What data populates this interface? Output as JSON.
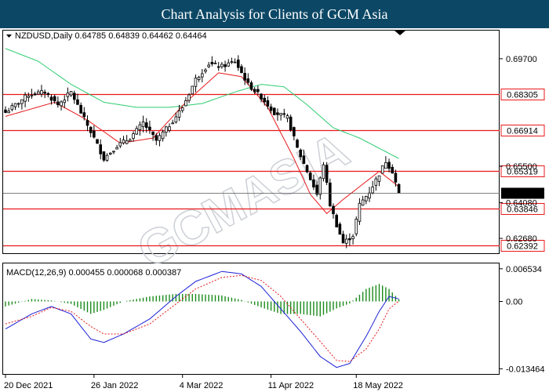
{
  "banner": {
    "title": "Chart Analysis for Clients of GCM Asia"
  },
  "price_header": "NZDUSD,Daily  0.64785 0.64839 0.64462 0.64464",
  "macd_header": "MACD(12,26,9) 0.000455 0.000068 0.000387",
  "watermark": "GCMASIA",
  "colors": {
    "banner_bg": "#0c4866",
    "level_line": "#e8191b",
    "ma_fast": "#e8191b",
    "ma_slow": "#2ecc71",
    "macd_line": "#1b1fd6",
    "signal_line": "#e8191b",
    "histogram": "#1a8a1a",
    "candle": "#000000",
    "price_tag_bg": "#000000"
  },
  "chart_data": [
    {
      "type": "candlestick",
      "symbol": "NZDUSD",
      "timeframe": "Daily",
      "last_ohlc": {
        "open": 0.64785,
        "high": 0.64839,
        "low": 0.64462,
        "close": 0.64464
      },
      "ylim": [
        0.621,
        0.708
      ],
      "y_ticks": [
        0.697,
        0.655,
        0.6408,
        0.6268
      ],
      "x_ticks": [
        "20 Dec 2021",
        "26 Jan 2022",
        "4 Mar 2022",
        "11 Apr 2022",
        "18 May 2022"
      ],
      "x_tick_index": [
        0,
        27,
        54,
        81,
        107
      ],
      "levels": [
        0.68305,
        0.66914,
        0.65319,
        0.63846,
        0.62392
      ],
      "current_price": 0.64464,
      "grid": false,
      "series": [
        {
          "name": "ma_fast",
          "anchors": [
            [
              0,
              0.6745
            ],
            [
              15,
              0.68
            ],
            [
              25,
              0.673
            ],
            [
              35,
              0.664
            ],
            [
              45,
              0.666
            ],
            [
              55,
              0.68
            ],
            [
              65,
              0.6915
            ],
            [
              72,
              0.69
            ],
            [
              80,
              0.678
            ],
            [
              88,
              0.658
            ],
            [
              93,
              0.644
            ],
            [
              98,
              0.6365
            ],
            [
              103,
              0.642
            ],
            [
              108,
              0.647
            ],
            [
              114,
              0.653
            ],
            [
              120,
              0.647
            ]
          ]
        },
        {
          "name": "ma_slow",
          "anchors": [
            [
              0,
              0.701
            ],
            [
              10,
              0.696
            ],
            [
              20,
              0.687
            ],
            [
              30,
              0.68
            ],
            [
              40,
              0.678
            ],
            [
              50,
              0.678
            ],
            [
              60,
              0.6795
            ],
            [
              70,
              0.684
            ],
            [
              78,
              0.687
            ],
            [
              85,
              0.686
            ],
            [
              92,
              0.679
            ],
            [
              100,
              0.67
            ],
            [
              108,
              0.666
            ],
            [
              114,
              0.662
            ],
            [
              120,
              0.658
            ]
          ]
        },
        {
          "name": "closes",
          "anchors": [
            [
              0,
              0.676
            ],
            [
              7,
              0.683
            ],
            [
              12,
              0.684
            ],
            [
              16,
              0.679
            ],
            [
              20,
              0.684
            ],
            [
              23,
              0.676
            ],
            [
              27,
              0.666
            ],
            [
              30,
              0.658
            ],
            [
              34,
              0.663
            ],
            [
              38,
              0.666
            ],
            [
              42,
              0.672
            ],
            [
              46,
              0.665
            ],
            [
              50,
              0.671
            ],
            [
              54,
              0.678
            ],
            [
              58,
              0.689
            ],
            [
              62,
              0.695
            ],
            [
              66,
              0.694
            ],
            [
              70,
              0.696
            ],
            [
              74,
              0.687
            ],
            [
              78,
              0.682
            ],
            [
              82,
              0.676
            ],
            [
              86,
              0.674
            ],
            [
              89,
              0.662
            ],
            [
              92,
              0.653
            ],
            [
              95,
              0.644
            ],
            [
              97,
              0.656
            ],
            [
              99,
              0.64
            ],
            [
              101,
              0.632
            ],
            [
              103,
              0.625
            ],
            [
              106,
              0.628
            ],
            [
              108,
              0.64
            ],
            [
              111,
              0.645
            ],
            [
              114,
              0.652
            ],
            [
              116,
              0.657
            ],
            [
              118,
              0.653
            ],
            [
              120,
              0.6446
            ]
          ]
        }
      ]
    },
    {
      "type": "macd",
      "name": "MACD(12,26,9)",
      "values": {
        "macd": 0.000455,
        "signal": 6.8e-05,
        "histogram": 0.000387
      },
      "ylim": [
        -0.0145,
        0.0076
      ],
      "y_ticks": [
        0.006534,
        0.0,
        -0.013464
      ],
      "series": [
        {
          "name": "macd",
          "anchors": [
            [
              0,
              -0.0055
            ],
            [
              8,
              -0.0025
            ],
            [
              14,
              -0.001
            ],
            [
              20,
              -0.0025
            ],
            [
              26,
              -0.0075
            ],
            [
              30,
              -0.0082
            ],
            [
              36,
              -0.0065
            ],
            [
              44,
              -0.0035
            ],
            [
              52,
              0.001
            ],
            [
              58,
              0.004
            ],
            [
              66,
              0.006
            ],
            [
              72,
              0.0055
            ],
            [
              78,
              0.003
            ],
            [
              84,
              -0.0015
            ],
            [
              90,
              -0.006
            ],
            [
              96,
              -0.011
            ],
            [
              101,
              -0.0132
            ],
            [
              105,
              -0.0124
            ],
            [
              110,
              -0.007
            ],
            [
              114,
              -0.002
            ],
            [
              117,
              0.001
            ],
            [
              120,
              0.0005
            ]
          ]
        },
        {
          "name": "signal",
          "anchors": [
            [
              0,
              -0.0045
            ],
            [
              8,
              -0.003
            ],
            [
              14,
              -0.0012
            ],
            [
              20,
              -0.002
            ],
            [
              26,
              -0.005
            ],
            [
              30,
              -0.0065
            ],
            [
              36,
              -0.0065
            ],
            [
              44,
              -0.0045
            ],
            [
              52,
              -0.0005
            ],
            [
              58,
              0.0025
            ],
            [
              66,
              0.0048
            ],
            [
              72,
              0.0052
            ],
            [
              78,
              0.0042
            ],
            [
              84,
              0.001
            ],
            [
              90,
              -0.0035
            ],
            [
              96,
              -0.008
            ],
            [
              101,
              -0.0118
            ],
            [
              105,
              -0.012
            ],
            [
              110,
              -0.0095
            ],
            [
              114,
              -0.0055
            ],
            [
              117,
              -0.0015
            ],
            [
              120,
              0.0001
            ]
          ]
        }
      ]
    }
  ]
}
